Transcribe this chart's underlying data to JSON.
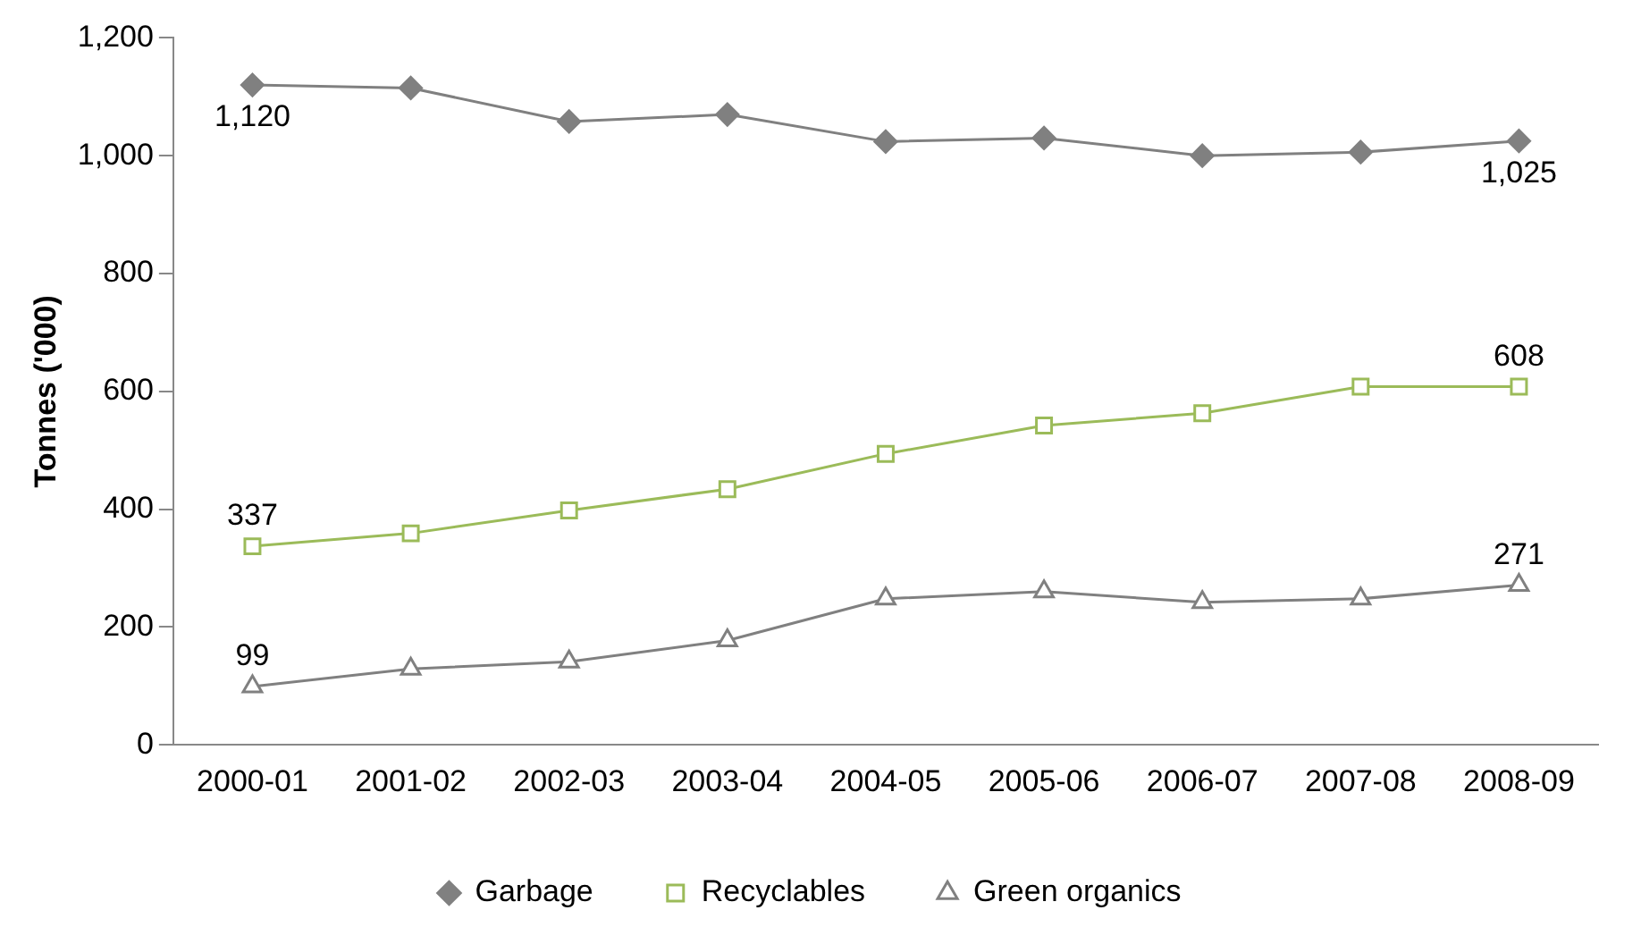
{
  "chart_data": {
    "type": "line",
    "ylabel": "Tonnes ('000)",
    "categories": [
      "2000-01",
      "2001-02",
      "2002-03",
      "2003-04",
      "2004-05",
      "2005-06",
      "2006-07",
      "2007-08",
      "2008-09"
    ],
    "series": [
      {
        "name": "Garbage",
        "color": "#808080",
        "marker": "diamond",
        "values": [
          1120,
          1115,
          1058,
          1070,
          1024,
          1030,
          1000,
          1006,
          1025
        ],
        "value_labels": [
          "1,120",
          null,
          null,
          null,
          null,
          null,
          null,
          null,
          "1,025"
        ]
      },
      {
        "name": "Recyclables",
        "color": "#9bbb59",
        "marker": "square",
        "values": [
          337,
          359,
          398,
          434,
          494,
          542,
          563,
          608,
          608
        ],
        "value_labels": [
          "337",
          null,
          null,
          null,
          null,
          null,
          null,
          null,
          "608"
        ]
      },
      {
        "name": "Green organics",
        "color": "#808080",
        "marker": "triangle",
        "values": [
          99,
          129,
          141,
          177,
          248,
          260,
          242,
          248,
          271
        ],
        "value_labels": [
          "99",
          null,
          null,
          null,
          null,
          null,
          null,
          null,
          "271"
        ]
      }
    ],
    "ylim": [
      0,
      1200
    ],
    "yticks": [
      0,
      {
        "value": 200,
        "label": "200"
      },
      {
        "value": 400,
        "label": "400"
      },
      {
        "value": 600,
        "label": "600"
      },
      {
        "value": 800,
        "label": "800"
      },
      {
        "value": 1000,
        "label": "1,000"
      },
      {
        "value": 1200,
        "label": "1,200"
      }
    ],
    "grid": false,
    "legend": "bottom",
    "line_style": "solid"
  }
}
